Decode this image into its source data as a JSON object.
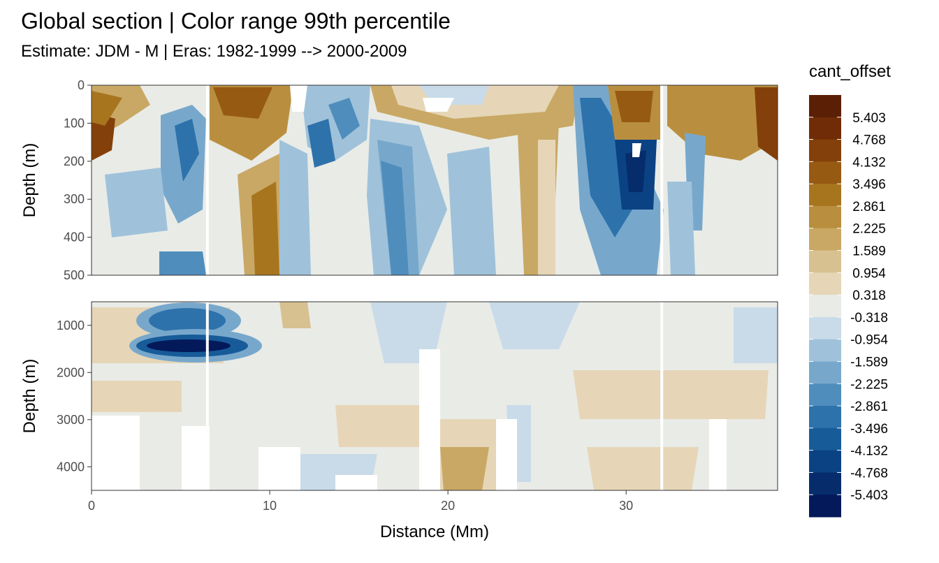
{
  "chart_data": {
    "type": "heatmap",
    "title": "Global section | Color range 99th percentile",
    "subtitle": "Estimate: JDM - M | Eras: 1982-1999 --> 2000-2009",
    "xlabel": "Distance (Mm)",
    "x_ticks": [
      "0",
      "10",
      "20",
      "30"
    ],
    "xlim": [
      0,
      38.5
    ],
    "panels": [
      {
        "ylabel": "Depth (m)",
        "ylim": [
          0,
          500
        ],
        "y_reversed": true,
        "y_ticks": [
          "0",
          "100",
          "200",
          "300",
          "400",
          "500"
        ]
      },
      {
        "ylabel": "Depth (m)",
        "ylim": [
          500,
          4500
        ],
        "y_reversed": true,
        "y_ticks": [
          "1000",
          "2000",
          "3000",
          "4000"
        ]
      }
    ],
    "legend": {
      "title": "cant_offset",
      "placement": "right",
      "labels": [
        "5.403",
        "4.768",
        "4.132",
        "3.496",
        "2.861",
        "2.225",
        "1.589",
        "0.954",
        "0.318",
        "-0.318",
        "-0.954",
        "-1.589",
        "-2.225",
        "-2.861",
        "-3.496",
        "-4.132",
        "-4.768",
        "-5.403"
      ],
      "colors": [
        "#5a1f04",
        "#6f2c06",
        "#84400a",
        "#975a12",
        "#a8751f",
        "#b98f3f",
        "#c8a864",
        "#d8c191",
        "#e6d6b7",
        "#e9ebe7",
        "#c9dbe8",
        "#9fc2da",
        "#77a8cc",
        "#4f8dbd",
        "#2e72ab",
        "#175b99",
        "#0b4283",
        "#062c6c",
        "#03195a"
      ]
    },
    "gaps_x": [
      6.5,
      32.0
    ]
  }
}
